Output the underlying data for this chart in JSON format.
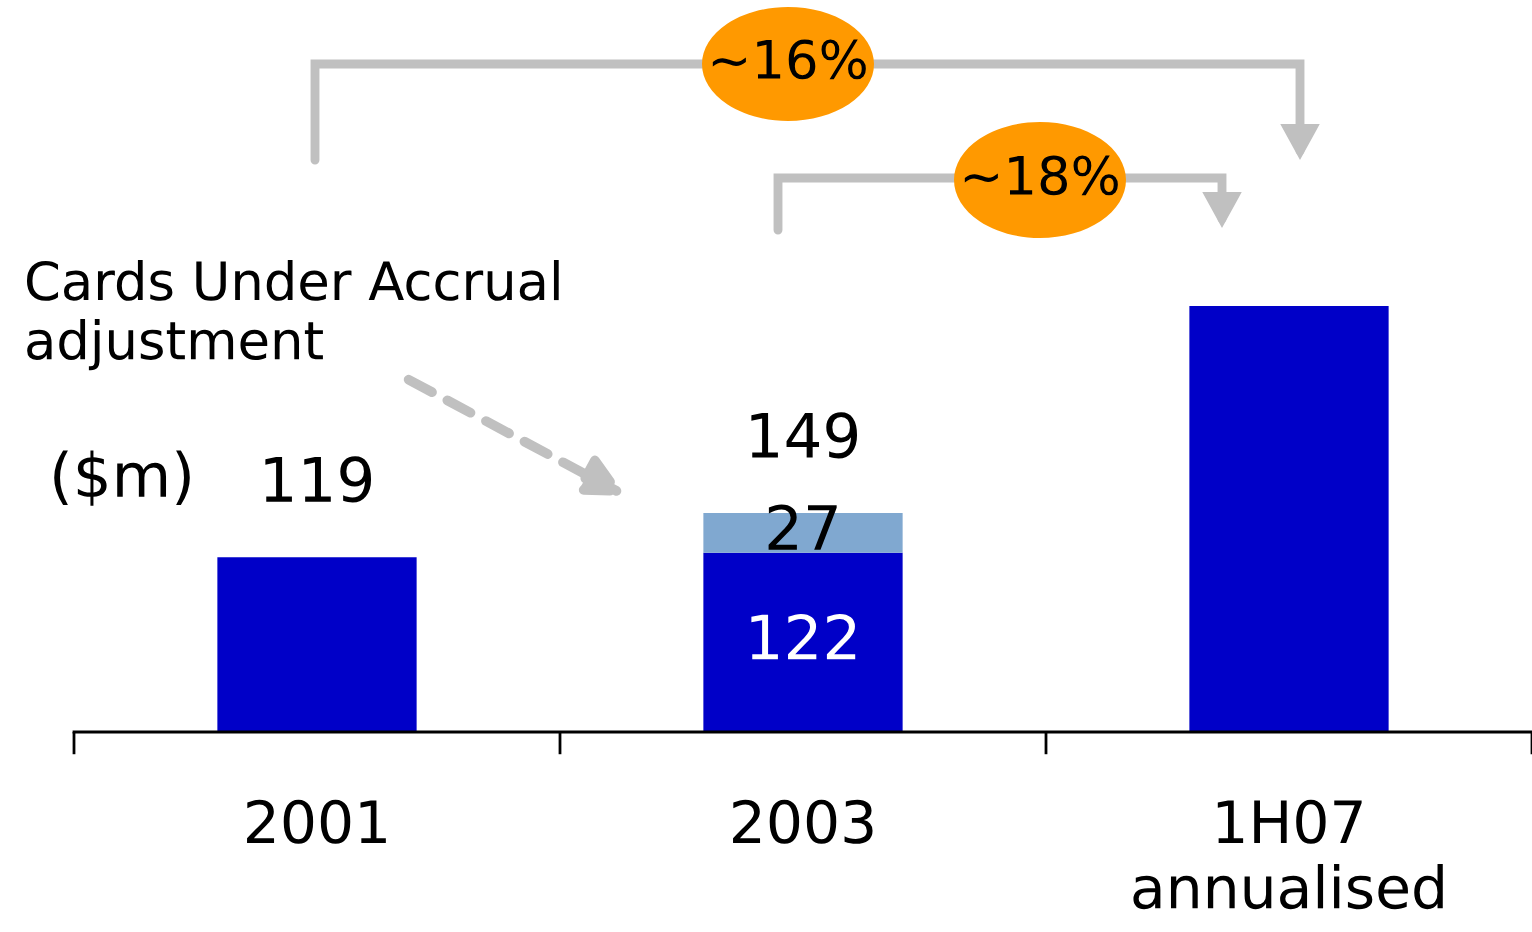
{
  "chart_data": {
    "type": "bar",
    "stacked": true,
    "categories": [
      "2001",
      "2003",
      "1H07\nannualised"
    ],
    "series": [
      {
        "color": "#0000c8",
        "values": [
          119,
          122,
          290
        ],
        "value_labels": [
          null,
          "122",
          null
        ]
      },
      {
        "color": "#80a8d0",
        "values": [
          null,
          27,
          null
        ],
        "value_labels": [
          null,
          "27",
          null
        ]
      }
    ],
    "totals": [
      "119",
      "149",
      null
    ],
    "ylabel": "($m)",
    "annotations": [
      "Cards Under Accrual\nadjustment",
      "~16%",
      "~18%"
    ]
  }
}
